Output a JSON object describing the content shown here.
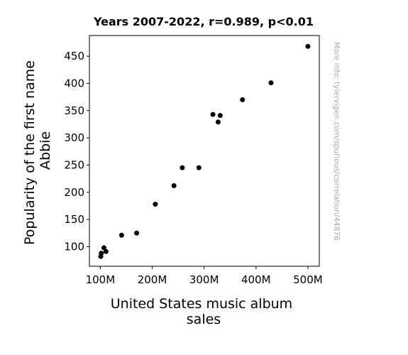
{
  "chart_data": {
    "type": "scatter",
    "title": "Years 2007-2022, r=0.989, p<0.01",
    "xlabel_lines": [
      "United States music album",
      "sales"
    ],
    "ylabel_lines": [
      "Popularity of the first name",
      "Abbie"
    ],
    "watermark": "More info: tylervigen.com/spurious/correlation/44876",
    "xlim": [
      79,
      522
    ],
    "ylim": [
      64,
      488
    ],
    "x_ticks": [
      100,
      200,
      300,
      400,
      500
    ],
    "x_tick_labels": [
      "100M",
      "200M",
      "300M",
      "400M",
      "500M"
    ],
    "y_ticks": [
      100,
      150,
      200,
      250,
      300,
      350,
      400,
      450
    ],
    "y_tick_labels": [
      "100",
      "150",
      "200",
      "250",
      "300",
      "350",
      "400",
      "450"
    ],
    "grid": false,
    "marker_color": "#000000",
    "points": [
      {
        "x": 500,
        "y": 468
      },
      {
        "x": 429,
        "y": 401
      },
      {
        "x": 374,
        "y": 370
      },
      {
        "x": 331,
        "y": 341
      },
      {
        "x": 317,
        "y": 343
      },
      {
        "x": 327,
        "y": 329
      },
      {
        "x": 290,
        "y": 245
      },
      {
        "x": 258,
        "y": 245
      },
      {
        "x": 242,
        "y": 212
      },
      {
        "x": 206,
        "y": 178
      },
      {
        "x": 170,
        "y": 125
      },
      {
        "x": 141,
        "y": 121
      },
      {
        "x": 107,
        "y": 98
      },
      {
        "x": 111,
        "y": 91
      },
      {
        "x": 102,
        "y": 88
      },
      {
        "x": 101,
        "y": 82
      }
    ]
  }
}
